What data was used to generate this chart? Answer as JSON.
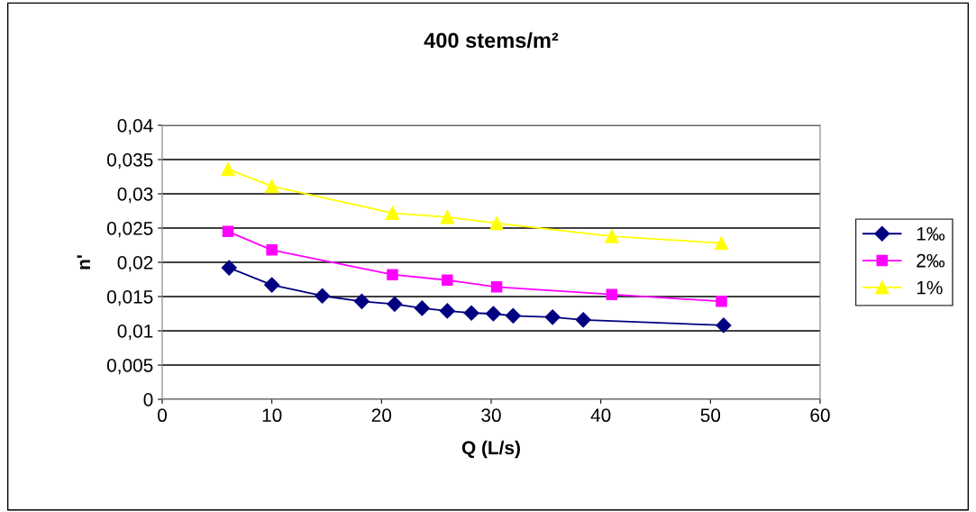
{
  "chart_data": {
    "type": "line",
    "title": "400 stems/m²",
    "xlabel": "Q (L/s)",
    "ylabel": "n'",
    "series": [
      {
        "name": "1‰",
        "color": "#000080",
        "marker": "diamond",
        "x": [
          6.1,
          10.0,
          14.6,
          18.2,
          21.2,
          23.7,
          26.0,
          28.2,
          30.2,
          32.0,
          35.6,
          38.4,
          51.2
        ],
        "values": [
          0.0192,
          0.0167,
          0.0151,
          0.0143,
          0.0139,
          0.0133,
          0.0129,
          0.0126,
          0.0125,
          0.0122,
          0.012,
          0.0116,
          0.0108
        ]
      },
      {
        "name": "2‰",
        "color": "#ff00ff",
        "marker": "square",
        "x": [
          6.0,
          10.0,
          21.0,
          26.0,
          30.5,
          41.0,
          51.0
        ],
        "values": [
          0.0245,
          0.0218,
          0.0182,
          0.0174,
          0.0164,
          0.0153,
          0.0143
        ]
      },
      {
        "name": "1%",
        "color": "#ffff00",
        "marker": "triangle",
        "x": [
          6.0,
          10.0,
          21.0,
          26.0,
          30.5,
          41.0,
          51.0
        ],
        "values": [
          0.0336,
          0.0311,
          0.0272,
          0.0266,
          0.0257,
          0.0238,
          0.0228
        ]
      }
    ],
    "xlim": [
      0,
      60
    ],
    "xticks": [
      0,
      10,
      20,
      30,
      40,
      50,
      60
    ],
    "ylim": [
      0,
      0.04
    ],
    "yticks": [
      {
        "value": 0,
        "label": "0"
      },
      {
        "value": 0.005,
        "label": "0,005"
      },
      {
        "value": 0.01,
        "label": "0,01"
      },
      {
        "value": 0.015,
        "label": "0,015"
      },
      {
        "value": 0.02,
        "label": "0,02"
      },
      {
        "value": 0.025,
        "label": "0,025"
      },
      {
        "value": 0.03,
        "label": "0,03"
      },
      {
        "value": 0.035,
        "label": "0,035"
      },
      {
        "value": 0.04,
        "label": "0,04"
      }
    ],
    "grid": "y",
    "legend": "right",
    "line_style": "solid"
  }
}
